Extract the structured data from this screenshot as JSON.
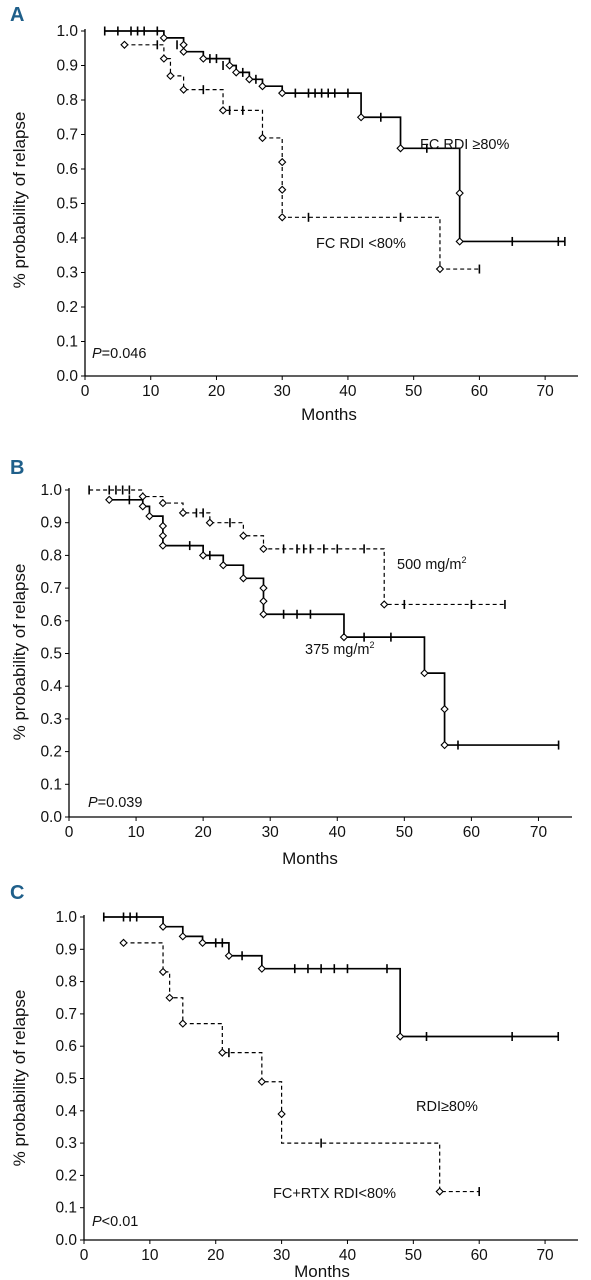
{
  "chart_data": [
    {
      "type": "line",
      "panel_label": "A",
      "xlabel": "Months",
      "ylabel": "% probability of relapse",
      "xlim": [
        0,
        75
      ],
      "ylim": [
        0,
        1.0
      ],
      "xticks": [
        "0",
        "10",
        "20",
        "30",
        "40",
        "50",
        "60",
        "70"
      ],
      "yticks": [
        "0.0",
        "0.1",
        "0.2",
        "0.3",
        "0.4",
        "0.5",
        "0.6",
        "0.7",
        "0.8",
        "0.9",
        "1.0"
      ],
      "pvalue": {
        "italic": "P",
        "rest": "=0.046"
      },
      "series": [
        {
          "name": "FC RDI ≥80%",
          "style": "solid",
          "steps": [
            [
              3,
              1.0
            ],
            [
              12,
              0.98
            ],
            [
              15,
              0.96
            ],
            [
              15,
              0.94
            ],
            [
              18,
              0.92
            ],
            [
              22,
              0.9
            ],
            [
              23,
              0.88
            ],
            [
              25,
              0.86
            ],
            [
              27,
              0.84
            ],
            [
              30,
              0.82
            ],
            [
              42,
              0.75
            ],
            [
              48,
              0.66
            ],
            [
              57,
              0.53
            ],
            [
              57,
              0.39
            ],
            [
              73,
              0.39
            ]
          ],
          "events": [
            [
              12,
              0.98
            ],
            [
              15,
              0.96
            ],
            [
              15,
              0.94
            ],
            [
              18,
              0.92
            ],
            [
              22,
              0.9
            ],
            [
              23,
              0.88
            ],
            [
              25,
              0.86
            ],
            [
              27,
              0.84
            ],
            [
              30,
              0.82
            ],
            [
              42,
              0.75
            ],
            [
              48,
              0.66
            ],
            [
              57,
              0.53
            ],
            [
              57,
              0.39
            ]
          ],
          "censored": [
            [
              3,
              1.0
            ],
            [
              5,
              1.0
            ],
            [
              7,
              1.0
            ],
            [
              8,
              1.0
            ],
            [
              9,
              1.0
            ],
            [
              11,
              1.0
            ],
            [
              14,
              0.96
            ],
            [
              19,
              0.92
            ],
            [
              20,
              0.92
            ],
            [
              21,
              0.9
            ],
            [
              24,
              0.88
            ],
            [
              26,
              0.86
            ],
            [
              32,
              0.82
            ],
            [
              34,
              0.82
            ],
            [
              35,
              0.82
            ],
            [
              36,
              0.82
            ],
            [
              37,
              0.82
            ],
            [
              38,
              0.82
            ],
            [
              40,
              0.82
            ],
            [
              45,
              0.75
            ],
            [
              52,
              0.66
            ],
            [
              65,
              0.39
            ],
            [
              72,
              0.39
            ],
            [
              73,
              0.39
            ]
          ]
        },
        {
          "name": "FC RDI <80%",
          "style": "dashed",
          "steps": [
            [
              6,
              0.96
            ],
            [
              12,
              0.92
            ],
            [
              13,
              0.87
            ],
            [
              15,
              0.83
            ],
            [
              21,
              0.77
            ],
            [
              27,
              0.69
            ],
            [
              30,
              0.62
            ],
            [
              30,
              0.54
            ],
            [
              30,
              0.46
            ],
            [
              54,
              0.31
            ],
            [
              60,
              0.31
            ]
          ],
          "events": [
            [
              6,
              0.96
            ],
            [
              12,
              0.92
            ],
            [
              13,
              0.87
            ],
            [
              15,
              0.83
            ],
            [
              21,
              0.77
            ],
            [
              27,
              0.69
            ],
            [
              30,
              0.62
            ],
            [
              30,
              0.54
            ],
            [
              30,
              0.46
            ],
            [
              54,
              0.31
            ]
          ],
          "censored": [
            [
              11,
              0.96
            ],
            [
              18,
              0.83
            ],
            [
              22,
              0.77
            ],
            [
              24,
              0.77
            ],
            [
              34,
              0.46
            ],
            [
              48,
              0.46
            ],
            [
              60,
              0.31
            ]
          ]
        }
      ]
    },
    {
      "type": "line",
      "panel_label": "B",
      "xlabel": "Months",
      "ylabel": "% probability of relapse",
      "xlim": [
        0,
        75
      ],
      "ylim": [
        0,
        1.0
      ],
      "xticks": [
        "0",
        "10",
        "20",
        "30",
        "40",
        "50",
        "60",
        "70"
      ],
      "yticks": [
        "0.0",
        "0.1",
        "0.2",
        "0.3",
        "0.4",
        "0.5",
        "0.6",
        "0.7",
        "0.8",
        "0.9",
        "1.0"
      ],
      "pvalue": {
        "italic": "P",
        "rest": "=0.039"
      },
      "series": [
        {
          "name": "500 mg/m²",
          "label_main": "500 mg/m",
          "label_sup": "2",
          "style": "dashed",
          "steps": [
            [
              3,
              1.0
            ],
            [
              11,
              0.98
            ],
            [
              14,
              0.96
            ],
            [
              17,
              0.93
            ],
            [
              21,
              0.9
            ],
            [
              26,
              0.86
            ],
            [
              29,
              0.82
            ],
            [
              47,
              0.65
            ],
            [
              65,
              0.65
            ]
          ],
          "events": [
            [
              11,
              0.98
            ],
            [
              14,
              0.96
            ],
            [
              17,
              0.93
            ],
            [
              21,
              0.9
            ],
            [
              26,
              0.86
            ],
            [
              29,
              0.82
            ],
            [
              47,
              0.65
            ]
          ],
          "censored": [
            [
              3,
              1.0
            ],
            [
              6,
              1.0
            ],
            [
              7,
              1.0
            ],
            [
              8,
              1.0
            ],
            [
              9,
              1.0
            ],
            [
              19,
              0.93
            ],
            [
              20,
              0.93
            ],
            [
              24,
              0.9
            ],
            [
              32,
              0.82
            ],
            [
              34,
              0.82
            ],
            [
              35,
              0.82
            ],
            [
              36,
              0.82
            ],
            [
              38,
              0.82
            ],
            [
              40,
              0.82
            ],
            [
              44,
              0.82
            ],
            [
              50,
              0.65
            ],
            [
              60,
              0.65
            ],
            [
              65,
              0.65
            ]
          ]
        },
        {
          "name": "375 mg/m²",
          "label_main": "375 mg/m",
          "label_sup": "2",
          "style": "solid",
          "steps": [
            [
              6,
              0.97
            ],
            [
              11,
              0.95
            ],
            [
              12,
              0.92
            ],
            [
              14,
              0.89
            ],
            [
              14,
              0.86
            ],
            [
              14,
              0.83
            ],
            [
              20,
              0.8
            ],
            [
              23,
              0.77
            ],
            [
              26,
              0.73
            ],
            [
              29,
              0.7
            ],
            [
              29,
              0.66
            ],
            [
              29,
              0.62
            ],
            [
              41,
              0.55
            ],
            [
              53,
              0.44
            ],
            [
              56,
              0.33
            ],
            [
              56,
              0.22
            ],
            [
              73,
              0.22
            ]
          ],
          "events": [
            [
              6,
              0.97
            ],
            [
              11,
              0.95
            ],
            [
              12,
              0.92
            ],
            [
              14,
              0.89
            ],
            [
              14,
              0.86
            ],
            [
              14,
              0.83
            ],
            [
              20,
              0.8
            ],
            [
              23,
              0.77
            ],
            [
              26,
              0.73
            ],
            [
              29,
              0.7
            ],
            [
              29,
              0.66
            ],
            [
              29,
              0.62
            ],
            [
              41,
              0.55
            ],
            [
              53,
              0.44
            ],
            [
              56,
              0.33
            ],
            [
              56,
              0.22
            ]
          ],
          "censored": [
            [
              9,
              0.97
            ],
            [
              18,
              0.83
            ],
            [
              21,
              0.8
            ],
            [
              32,
              0.62
            ],
            [
              34,
              0.62
            ],
            [
              36,
              0.62
            ],
            [
              44,
              0.55
            ],
            [
              48,
              0.55
            ],
            [
              58,
              0.22
            ],
            [
              73,
              0.22
            ]
          ]
        }
      ]
    },
    {
      "type": "line",
      "panel_label": "C",
      "xlabel": "Months",
      "ylabel": "% probability of relapse",
      "xlim": [
        0,
        75
      ],
      "ylim": [
        0,
        1.0
      ],
      "xticks": [
        "0",
        "10",
        "20",
        "30",
        "40",
        "50",
        "60",
        "70"
      ],
      "yticks": [
        "0.0",
        "0.1",
        "0.2",
        "0.3",
        "0.4",
        "0.5",
        "0.6",
        "0.7",
        "0.8",
        "0.9",
        "1.0"
      ],
      "pvalue": {
        "italic": "P",
        "rest": "<0.01"
      },
      "series": [
        {
          "name": "RDI≥80%",
          "style": "solid",
          "steps": [
            [
              3,
              1.0
            ],
            [
              12,
              0.97
            ],
            [
              15,
              0.94
            ],
            [
              18,
              0.92
            ],
            [
              22,
              0.88
            ],
            [
              27,
              0.84
            ],
            [
              48,
              0.63
            ],
            [
              72,
              0.63
            ]
          ],
          "events": [
            [
              12,
              0.97
            ],
            [
              15,
              0.94
            ],
            [
              18,
              0.92
            ],
            [
              22,
              0.88
            ],
            [
              27,
              0.84
            ],
            [
              48,
              0.63
            ]
          ],
          "censored": [
            [
              3,
              1.0
            ],
            [
              6,
              1.0
            ],
            [
              7,
              1.0
            ],
            [
              8,
              1.0
            ],
            [
              20,
              0.92
            ],
            [
              21,
              0.92
            ],
            [
              24,
              0.88
            ],
            [
              32,
              0.84
            ],
            [
              34,
              0.84
            ],
            [
              36,
              0.84
            ],
            [
              38,
              0.84
            ],
            [
              40,
              0.84
            ],
            [
              46,
              0.84
            ],
            [
              52,
              0.63
            ],
            [
              65,
              0.63
            ],
            [
              72,
              0.63
            ]
          ]
        },
        {
          "name": "FC+RTX RDI<80%",
          "style": "dashed",
          "steps": [
            [
              6,
              0.92
            ],
            [
              12,
              0.83
            ],
            [
              13,
              0.75
            ],
            [
              15,
              0.67
            ],
            [
              21,
              0.58
            ],
            [
              27,
              0.49
            ],
            [
              30,
              0.39
            ],
            [
              30,
              0.3
            ],
            [
              54,
              0.15
            ],
            [
              60,
              0.15
            ]
          ],
          "events": [
            [
              6,
              0.92
            ],
            [
              12,
              0.83
            ],
            [
              13,
              0.75
            ],
            [
              15,
              0.67
            ],
            [
              21,
              0.58
            ],
            [
              27,
              0.49
            ],
            [
              30,
              0.39
            ],
            [
              54,
              0.15
            ]
          ],
          "censored": [
            [
              22,
              0.58
            ],
            [
              36,
              0.3
            ],
            [
              60,
              0.15
            ]
          ]
        }
      ]
    }
  ]
}
